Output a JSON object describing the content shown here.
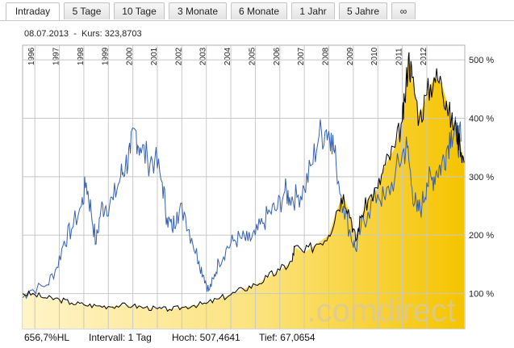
{
  "tabs": [
    {
      "label": "Intraday",
      "active": true
    },
    {
      "label": "5 Tage"
    },
    {
      "label": "10 Tage"
    },
    {
      "label": "3 Monate"
    },
    {
      "label": "6 Monate"
    },
    {
      "label": "1 Jahr"
    },
    {
      "label": "5 Jahre"
    },
    {
      "label": "∞"
    }
  ],
  "info": {
    "date": "08.07.2013",
    "separator": "-",
    "price_label": "Kurs:",
    "price": "323,8703"
  },
  "footer": {
    "hl": "656,7%HL",
    "interval": "Intervall: 1 Tag",
    "high": "Hoch: 507,4641",
    "low": "Tief: 67,0654"
  },
  "watermark": ".comdirect",
  "colors": {
    "price_line": "#000000",
    "comparison_line": "#3560b0",
    "area_fill": "#f5c400",
    "grid": "#c8c8c8"
  },
  "chart_data": {
    "type": "line",
    "x_axis": {
      "type": "time",
      "tick_labels": [
        "1996",
        "1997",
        "1998",
        "1999",
        "2000",
        "2001",
        "2002",
        "2003",
        "2004",
        "2005",
        "2006",
        "2007",
        "2008",
        "2009",
        "2010",
        "2011",
        "2012"
      ]
    },
    "y_axis": {
      "position": "right",
      "tick_labels": [
        "100 %",
        "200 %",
        "300 %",
        "400 %",
        "500 %"
      ],
      "ticks": [
        100,
        200,
        300,
        400,
        500
      ],
      "range": [
        40,
        525
      ]
    },
    "grid": true,
    "series": [
      {
        "style": "area-line",
        "points": [
          [
            1995.5,
            100
          ],
          [
            1996,
            98
          ],
          [
            1996.5,
            92
          ],
          [
            1997,
            90
          ],
          [
            1997.5,
            84
          ],
          [
            1998,
            81
          ],
          [
            1998.5,
            79
          ],
          [
            1999,
            78
          ],
          [
            1999.5,
            80
          ],
          [
            2000,
            79
          ],
          [
            2000.5,
            76
          ],
          [
            2001,
            74
          ],
          [
            2001.5,
            73
          ],
          [
            2002,
            76
          ],
          [
            2002.5,
            80
          ],
          [
            2003,
            83
          ],
          [
            2003.5,
            91
          ],
          [
            2004,
            98
          ],
          [
            2004.5,
            108
          ],
          [
            2005,
            115
          ],
          [
            2005.5,
            128
          ],
          [
            2006,
            140
          ],
          [
            2006.5,
            155
          ],
          [
            2006.6,
            180
          ],
          [
            2007,
            170
          ],
          [
            2007.5,
            185
          ],
          [
            2008,
            200
          ],
          [
            2008.3,
            240
          ],
          [
            2008.6,
            270
          ],
          [
            2008.9,
            230
          ],
          [
            2009.1,
            190
          ],
          [
            2009.3,
            230
          ],
          [
            2009.6,
            260
          ],
          [
            2010,
            280
          ],
          [
            2010.3,
            320
          ],
          [
            2010.7,
            350
          ],
          [
            2011,
            395
          ],
          [
            2011.1,
            430
          ],
          [
            2011.25,
            505
          ],
          [
            2011.4,
            470
          ],
          [
            2011.7,
            400
          ],
          [
            2012,
            440
          ],
          [
            2012.3,
            470
          ],
          [
            2012.6,
            460
          ],
          [
            2012.8,
            430
          ],
          [
            2013,
            395
          ],
          [
            2013.2,
            380
          ],
          [
            2013.35,
            360
          ],
          [
            2013.52,
            324
          ]
        ]
      },
      {
        "style": "line",
        "points": [
          [
            1995.5,
            93
          ],
          [
            1995.8,
            105
          ],
          [
            1996.5,
            115
          ],
          [
            1996.9,
            145
          ],
          [
            1997.2,
            190
          ],
          [
            1997.5,
            210
          ],
          [
            1997.9,
            250
          ],
          [
            1998.1,
            290
          ],
          [
            1998.3,
            240
          ],
          [
            1998.5,
            185
          ],
          [
            1998.7,
            245
          ],
          [
            1998.9,
            250
          ],
          [
            1999.2,
            260
          ],
          [
            1999.5,
            300
          ],
          [
            1999.7,
            320
          ],
          [
            1999.9,
            340
          ],
          [
            2000.1,
            380
          ],
          [
            2000.3,
            350
          ],
          [
            2000.6,
            330
          ],
          [
            2000.9,
            330
          ],
          [
            2001.2,
            290
          ],
          [
            2001.4,
            230
          ],
          [
            2001.6,
            210
          ],
          [
            2001.8,
            240
          ],
          [
            2002.1,
            240
          ],
          [
            2002.4,
            195
          ],
          [
            2002.7,
            155
          ],
          [
            2002.9,
            130
          ],
          [
            2003.1,
            105
          ],
          [
            2003.3,
            125
          ],
          [
            2003.5,
            155
          ],
          [
            2003.8,
            175
          ],
          [
            2004.1,
            190
          ],
          [
            2004.4,
            195
          ],
          [
            2004.7,
            190
          ],
          [
            2005.0,
            200
          ],
          [
            2005.3,
            220
          ],
          [
            2005.6,
            240
          ],
          [
            2005.9,
            245
          ],
          [
            2006.2,
            275
          ],
          [
            2006.4,
            265
          ],
          [
            2006.7,
            265
          ],
          [
            2007.0,
            280
          ],
          [
            2007.3,
            320
          ],
          [
            2007.6,
            370
          ],
          [
            2007.9,
            380
          ],
          [
            2008.1,
            375
          ],
          [
            2008.3,
            320
          ],
          [
            2008.6,
            250
          ],
          [
            2008.9,
            200
          ],
          [
            2009.1,
            175
          ],
          [
            2009.3,
            210
          ],
          [
            2009.6,
            240
          ],
          [
            2010.0,
            270
          ],
          [
            2010.3,
            260
          ],
          [
            2010.7,
            300
          ],
          [
            2011.0,
            340
          ],
          [
            2011.2,
            350
          ],
          [
            2011.4,
            280
          ],
          [
            2011.6,
            240
          ],
          [
            2011.8,
            250
          ],
          [
            2012.0,
            290
          ],
          [
            2012.2,
            295
          ],
          [
            2012.4,
            310
          ],
          [
            2012.6,
            320
          ],
          [
            2012.8,
            345
          ],
          [
            2013.0,
            380
          ],
          [
            2013.2,
            370
          ],
          [
            2013.4,
            360
          ]
        ]
      }
    ]
  }
}
